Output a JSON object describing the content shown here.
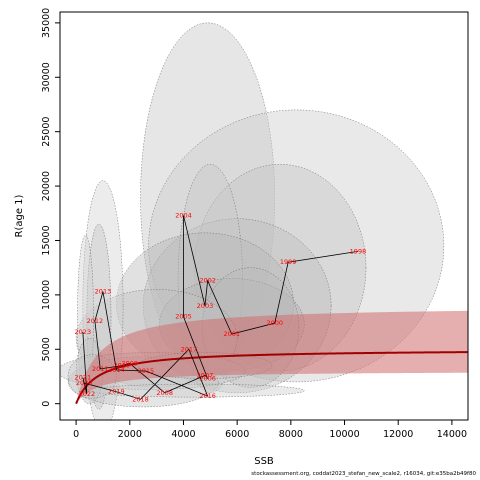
{
  "chart_data": {
    "type": "scatter",
    "xlabel": "SSB",
    "ylabel": "R(age 1)",
    "xlim": [
      -600,
      14600
    ],
    "ylim": [
      -1500,
      36000
    ],
    "x_ticks": [
      "0",
      "2000",
      "4000",
      "6000",
      "8000",
      "10000",
      "12000",
      "14000"
    ],
    "y_ticks": [
      "0",
      "5000",
      "10000",
      "15000",
      "20000",
      "25000",
      "30000",
      "35000"
    ],
    "x_tick_values": [
      0,
      2000,
      4000,
      6000,
      8000,
      10000,
      12000,
      14000
    ],
    "y_tick_values": [
      0,
      5000,
      10000,
      15000,
      20000,
      25000,
      30000,
      35000
    ],
    "grid": false,
    "points": [
      {
        "year": "1998",
        "x": 10500,
        "y": 14000
      },
      {
        "year": "1999",
        "x": 7900,
        "y": 13000
      },
      {
        "year": "2000",
        "x": 7400,
        "y": 7400
      },
      {
        "year": "2001",
        "x": 5800,
        "y": 6400
      },
      {
        "year": "2002",
        "x": 4900,
        "y": 11300
      },
      {
        "year": "2003",
        "x": 4800,
        "y": 9000
      },
      {
        "year": "2004",
        "x": 4000,
        "y": 17300
      },
      {
        "year": "2005",
        "x": 4000,
        "y": 8000
      },
      {
        "year": "2006",
        "x": 4900,
        "y": 2300
      },
      {
        "year": "2007",
        "x": 4800,
        "y": 2600
      },
      {
        "year": "2008",
        "x": 3300,
        "y": 1000
      },
      {
        "year": "2009",
        "x": 2000,
        "y": 3700
      },
      {
        "year": "2010",
        "x": 1700,
        "y": 3500
      },
      {
        "year": "2011",
        "x": 900,
        "y": 3200
      },
      {
        "year": "2012",
        "x": 700,
        "y": 7600
      },
      {
        "year": "2013",
        "x": 1000,
        "y": 10300
      },
      {
        "year": "2014",
        "x": 1500,
        "y": 3100
      },
      {
        "year": "2015",
        "x": 2600,
        "y": 3000
      },
      {
        "year": "2016",
        "x": 4900,
        "y": 700
      },
      {
        "year": "2017",
        "x": 4200,
        "y": 5000
      },
      {
        "year": "2018",
        "x": 2400,
        "y": 400
      },
      {
        "year": "2019",
        "x": 1500,
        "y": 1100
      },
      {
        "year": "2020",
        "x": 300,
        "y": 1900
      },
      {
        "year": "2021",
        "x": 250,
        "y": 2400
      },
      {
        "year": "2022",
        "x": 400,
        "y": 900
      },
      {
        "year": "2023",
        "x": 250,
        "y": 6600
      }
    ],
    "ellipses": [
      {
        "cx": 4900,
        "cy": 19000,
        "rx": 2500,
        "ry": 16000,
        "color": "#c4c4c4"
      },
      {
        "cx": 8200,
        "cy": 14500,
        "rx": 5500,
        "ry": 12500,
        "color": "#cbcbcb"
      },
      {
        "cx": 7600,
        "cy": 12500,
        "rx": 3200,
        "ry": 9500,
        "color": "#c4c4c4"
      },
      {
        "cx": 6000,
        "cy": 9000,
        "rx": 3500,
        "ry": 8000,
        "color": "#bcbcbc"
      },
      {
        "cx": 5000,
        "cy": 11500,
        "rx": 1200,
        "ry": 10500,
        "color": "#c8c8c8"
      },
      {
        "cx": 4800,
        "cy": 9200,
        "rx": 3300,
        "ry": 6500,
        "color": "#b8b8b8"
      },
      {
        "cx": 5800,
        "cy": 7300,
        "rx": 2700,
        "ry": 4200,
        "color": "#b4b4b4"
      },
      {
        "cx": 6500,
        "cy": 7000,
        "rx": 1800,
        "ry": 5500,
        "color": "#bababa"
      },
      {
        "cx": 3000,
        "cy": 6000,
        "rx": 3000,
        "ry": 4500,
        "color": "#c0c0c0"
      },
      {
        "cx": 1000,
        "cy": 9000,
        "rx": 750,
        "ry": 11500,
        "color": "#d2d2d2"
      },
      {
        "cx": 850,
        "cy": 8000,
        "rx": 450,
        "ry": 8500,
        "color": "#c4c4c4"
      },
      {
        "cx": 350,
        "cy": 8000,
        "rx": 300,
        "ry": 7500,
        "color": "#cfcfcf"
      },
      {
        "cx": 2500,
        "cy": 2000,
        "rx": 2800,
        "ry": 2300,
        "color": "#c0c0c0"
      },
      {
        "cx": 2800,
        "cy": 3000,
        "rx": 3500,
        "ry": 1700,
        "color": "#c6c6c6"
      },
      {
        "cx": 4500,
        "cy": 1200,
        "rx": 4000,
        "ry": 600,
        "color": "#cccccc"
      },
      {
        "cx": 4800,
        "cy": 3500,
        "rx": 2500,
        "ry": 1200,
        "color": "#bebebe"
      },
      {
        "cx": 500,
        "cy": 3000,
        "rx": 500,
        "ry": 3000,
        "color": "#c2c2c2"
      },
      {
        "cx": 600,
        "cy": 2500,
        "rx": 900,
        "ry": 2000,
        "color": "#c8c8c8"
      }
    ],
    "stock_recruit_curve": {
      "a": 5000,
      "b": 800,
      "color": "#a00000"
    },
    "confidence_band": {
      "upper_a": 9000,
      "upper_b": 800,
      "lower_a": 3000,
      "lower_b": 800,
      "color": "#d26e6e"
    }
  },
  "footer_text": "stockassessment.org, coddat2023_stefan_new_scale2, r16034, git:e35ba2b49f80"
}
